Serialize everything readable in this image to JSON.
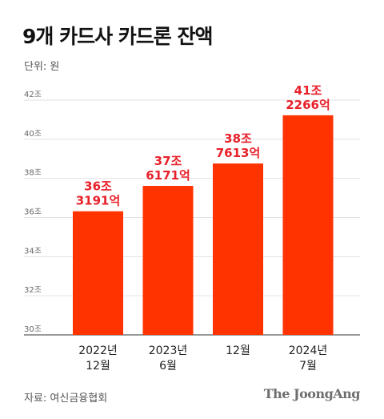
{
  "chart_data": {
    "type": "bar",
    "title": "9개 카드사 카드론 잔액",
    "unit_label": "단위: 원",
    "ylim": [
      30,
      42
    ],
    "yticks": [
      30,
      32,
      34,
      36,
      38,
      40,
      42
    ],
    "ytick_labels": [
      "30조",
      "32조",
      "34조",
      "36조",
      "38조",
      "40조",
      "42조"
    ],
    "categories": [
      [
        "2022년",
        "12월"
      ],
      [
        "2023년",
        "6월"
      ],
      [
        "12월"
      ],
      [
        "2024년",
        "7월"
      ]
    ],
    "values": [
      36.3191,
      37.6171,
      38.7613,
      41.2266
    ],
    "data_labels": [
      [
        "36조",
        "3191억"
      ],
      [
        "37조",
        "6171억"
      ],
      [
        "38조",
        "7613억"
      ],
      [
        "41조",
        "2266억"
      ]
    ],
    "bar_color": "#ff3300",
    "label_color": "#e8202a",
    "grid": true
  },
  "source": "자료: 여신금융협회",
  "logo": "The JoongAng"
}
